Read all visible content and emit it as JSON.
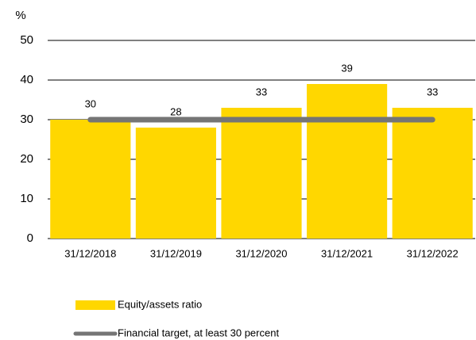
{
  "chart_data": {
    "type": "bar",
    "ylabel": "%",
    "categories": [
      "31/12/2018",
      "31/12/2019",
      "31/12/2020",
      "31/12/2021",
      "31/12/2022"
    ],
    "series": [
      {
        "name": "Equity/assets ratio",
        "type": "bar",
        "color": "#ffd700",
        "values": [
          30,
          28,
          33,
          39,
          33
        ]
      },
      {
        "name": "Financial target, at least 30 percent",
        "type": "line",
        "color": "#757575",
        "values": [
          30,
          30,
          30,
          30,
          30
        ]
      }
    ],
    "ylim": [
      0,
      50
    ],
    "yticks": [
      0,
      10,
      20,
      30,
      40,
      50
    ],
    "grid": true,
    "legend": "bottom-left"
  }
}
